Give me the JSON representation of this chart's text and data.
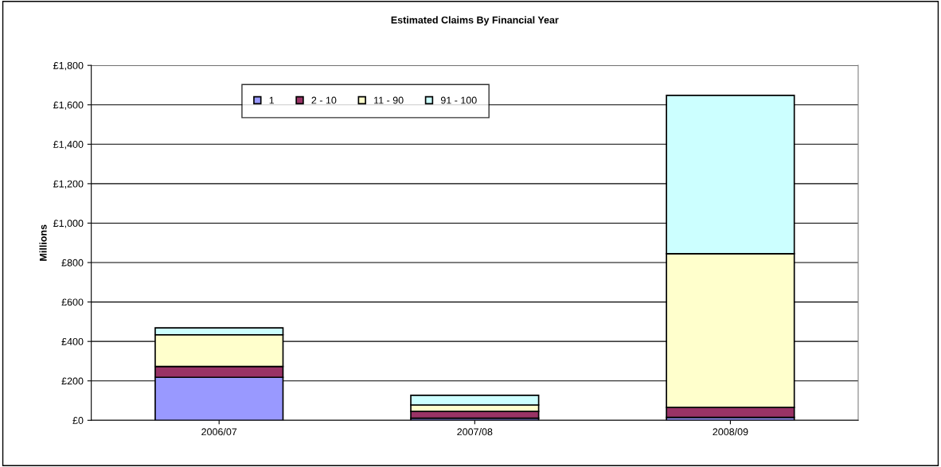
{
  "chart_data": {
    "type": "bar",
    "title": "Estimated Claims By Financial Year",
    "ylabel": "Millions",
    "categories": [
      "2006/07",
      "2007/08",
      "2008/09"
    ],
    "stacked": true,
    "series": [
      {
        "name": "1",
        "color": "#9999ff",
        "values": [
          218,
          11,
          15
        ]
      },
      {
        "name": "2 - 10",
        "color": "#993366",
        "values": [
          55,
          34,
          50
        ]
      },
      {
        "name": "11 - 90",
        "color": "#ffffcc",
        "values": [
          161,
          33,
          780
        ]
      },
      {
        "name": "91 - 100",
        "color": "#ccffff",
        "values": [
          35,
          49,
          803
        ]
      }
    ],
    "ylim": [
      0,
      1800
    ],
    "yticks": [
      {
        "value": 0,
        "label": "£0"
      },
      {
        "value": 200,
        "label": "£200"
      },
      {
        "value": 400,
        "label": "£400"
      },
      {
        "value": 600,
        "label": "£600"
      },
      {
        "value": 800,
        "label": "£800"
      },
      {
        "value": 1000,
        "label": "£1,000"
      },
      {
        "value": 1200,
        "label": "£1,200"
      },
      {
        "value": 1400,
        "label": "£1,400"
      },
      {
        "value": 1600,
        "label": "£1,600"
      },
      {
        "value": 1800,
        "label": "£1,800"
      }
    ],
    "grid": "y",
    "legend": "top left"
  }
}
